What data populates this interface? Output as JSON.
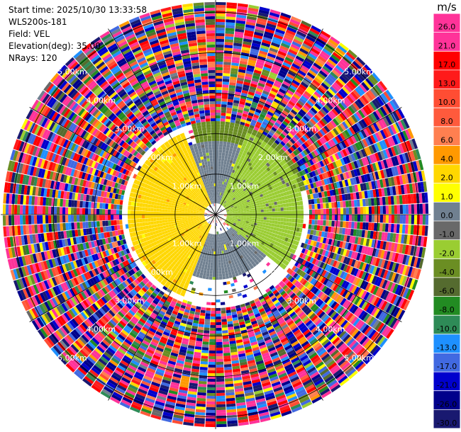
{
  "info": {
    "start_time": "Start time: 2025/10/30 13:33:58",
    "station": "WLS200s-181",
    "field": "Field: VEL",
    "elevation": "Elevation(deg): 35.00",
    "nrays": "NRays: 120"
  },
  "chart_data": {
    "type": "heatmap",
    "subtype": "polar PPI (plan position indicator)",
    "field": "VEL",
    "unit": "m/s",
    "n_rays": 120,
    "elevation_deg": 35.0,
    "range_rings_km": [
      1.0,
      2.0,
      3.0,
      4.0,
      5.0
    ],
    "range_ring_labels": [
      "1.00km",
      "2.00km",
      "3.00km",
      "4.00km",
      "5.00km"
    ],
    "max_range_km": 5.3,
    "colorbar": {
      "label": "m/s",
      "ticks": [
        "26.0",
        "21.0",
        "17.0",
        "13.0",
        "10.0",
        "8.0",
        "6.0",
        "4.0",
        "2.0",
        "1.0",
        "0.0",
        "-1.0",
        "-2.0",
        "-4.0",
        "-6.0",
        "-8.0",
        "-10.0",
        "-13.0",
        "-17.0",
        "-21.0",
        "-26.0",
        "-30.0"
      ],
      "bins": [
        {
          "lo": 26,
          "hi": 30,
          "color": "#ff3399"
        },
        {
          "lo": 21,
          "hi": 26,
          "color": "#ff3399"
        },
        {
          "lo": 17,
          "hi": 21,
          "color": "#ff0000"
        },
        {
          "lo": 13,
          "hi": 17,
          "color": "#ff1a1a"
        },
        {
          "lo": 10,
          "hi": 13,
          "color": "#ff4d33"
        },
        {
          "lo": 8,
          "hi": 10,
          "color": "#ff5a3c"
        },
        {
          "lo": 6,
          "hi": 8,
          "color": "#ff7f50"
        },
        {
          "lo": 4,
          "hi": 6,
          "color": "#ff9900"
        },
        {
          "lo": 2,
          "hi": 4,
          "color": "#ffd700"
        },
        {
          "lo": 1,
          "hi": 2,
          "color": "#ffff00"
        },
        {
          "lo": 0,
          "hi": 1,
          "color": "#708090"
        },
        {
          "lo": -1,
          "hi": 0,
          "color": "#696969"
        },
        {
          "lo": -2,
          "hi": -1,
          "color": "#9acd32"
        },
        {
          "lo": -4,
          "hi": -2,
          "color": "#6b8e23"
        },
        {
          "lo": -6,
          "hi": -4,
          "color": "#556b2f"
        },
        {
          "lo": -8,
          "hi": -6,
          "color": "#228b22"
        },
        {
          "lo": -10,
          "hi": -8,
          "color": "#2e8b57"
        },
        {
          "lo": -13,
          "hi": -10,
          "color": "#1e90ff"
        },
        {
          "lo": -17,
          "hi": -13,
          "color": "#4169e1"
        },
        {
          "lo": -21,
          "hi": -17,
          "color": "#0000cd"
        },
        {
          "lo": -26,
          "hi": -21,
          "color": "#00008b"
        },
        {
          "lo": -30,
          "hi": -26,
          "color": "#191970"
        }
      ]
    },
    "near_field_pattern": {
      "description": "within about 2.3 km: positive (yellow) velocities on the west side, negative (green) on the north-east and east, near-zero (grey) on the north-west and south",
      "sectors": [
        {
          "az_from": 200,
          "az_to": 340,
          "r_from": 0.3,
          "r_to": 2.2,
          "value": 3.0
        },
        {
          "az_from": 330,
          "az_to": 20,
          "r_from": 0.3,
          "r_to": 1.8,
          "value": 0.0
        },
        {
          "az_from": 20,
          "az_to": 130,
          "r_from": 0.3,
          "r_to": 2.2,
          "value": -1.5
        },
        {
          "az_from": 130,
          "az_to": 200,
          "r_from": 0.5,
          "r_to": 1.6,
          "value": 0.0
        },
        {
          "az_from": 345,
          "az_to": 75,
          "r_from": 1.8,
          "r_to": 2.3,
          "value": -3.0
        },
        {
          "az_from": 200,
          "az_to": 260,
          "r_from": 1.4,
          "r_to": 1.9,
          "value": 1.5
        }
      ],
      "far_field": "noise beyond about 2.3 km (random colors across the full scale)"
    }
  }
}
